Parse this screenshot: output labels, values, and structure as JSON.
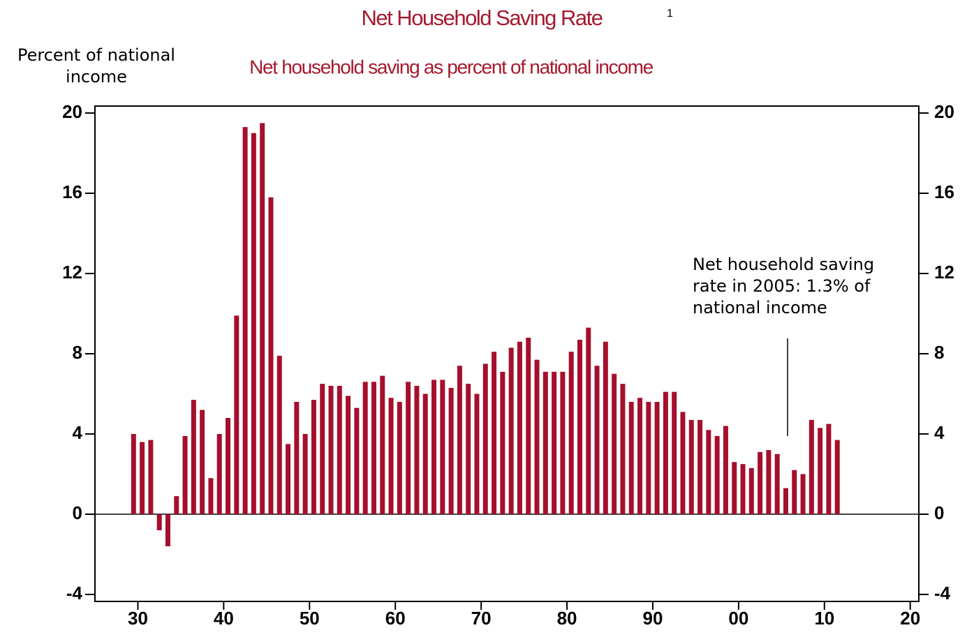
{
  "chart_data": {
    "type": "bar",
    "title": "Net Household Saving Rate",
    "title_note": "1",
    "subtitle": "Net household saving as percent of national income",
    "y_label": "Percent of national income",
    "annotation": "Net household saving rate in 2005:  1.3% of national income",
    "color": "#a50f2d",
    "x": [
      1929,
      1930,
      1931,
      1932,
      1933,
      1934,
      1935,
      1936,
      1937,
      1938,
      1939,
      1940,
      1941,
      1942,
      1943,
      1944,
      1945,
      1946,
      1947,
      1948,
      1949,
      1950,
      1951,
      1952,
      1953,
      1954,
      1955,
      1956,
      1957,
      1958,
      1959,
      1960,
      1961,
      1962,
      1963,
      1964,
      1965,
      1966,
      1967,
      1968,
      1969,
      1970,
      1971,
      1972,
      1973,
      1974,
      1975,
      1976,
      1977,
      1978,
      1979,
      1980,
      1981,
      1982,
      1983,
      1984,
      1985,
      1986,
      1987,
      1988,
      1989,
      1990,
      1991,
      1992,
      1993,
      1994,
      1995,
      1996,
      1997,
      1998,
      1999,
      2000,
      2001,
      2002,
      2003,
      2004,
      2005,
      2006,
      2007,
      2008,
      2009,
      2010,
      2011
    ],
    "values": [
      4.0,
      3.6,
      3.7,
      -0.8,
      -1.6,
      0.9,
      3.9,
      5.7,
      5.2,
      1.8,
      4.0,
      4.8,
      9.9,
      19.3,
      19.0,
      19.5,
      15.8,
      7.9,
      3.5,
      5.6,
      4.0,
      5.7,
      6.5,
      6.4,
      6.4,
      5.9,
      5.3,
      6.6,
      6.6,
      6.9,
      5.8,
      5.6,
      6.6,
      6.4,
      6.0,
      6.7,
      6.7,
      6.3,
      7.4,
      6.5,
      6.0,
      7.5,
      8.1,
      7.1,
      8.3,
      8.6,
      8.8,
      7.7,
      7.1,
      7.1,
      7.1,
      8.1,
      8.7,
      9.3,
      7.4,
      8.6,
      7.0,
      6.5,
      5.6,
      5.8,
      5.6,
      5.6,
      6.1,
      6.1,
      5.1,
      4.7,
      4.7,
      4.2,
      3.9,
      4.4,
      2.6,
      2.5,
      2.3,
      3.1,
      3.2,
      3.0,
      1.3,
      2.2,
      2.0,
      4.7,
      4.3,
      4.5,
      3.7
    ],
    "xlim": [
      1925,
      2021
    ],
    "xticks": [
      {
        "value": 1930,
        "label": "30"
      },
      {
        "value": 1940,
        "label": "40"
      },
      {
        "value": 1950,
        "label": "50"
      },
      {
        "value": 1960,
        "label": "60"
      },
      {
        "value": 1970,
        "label": "70"
      },
      {
        "value": 1980,
        "label": "80"
      },
      {
        "value": 1990,
        "label": "90"
      },
      {
        "value": 2000,
        "label": "00"
      },
      {
        "value": 2010,
        "label": "10"
      },
      {
        "value": 2020,
        "label": "20"
      }
    ],
    "ylim": [
      -4,
      20
    ],
    "yticks": [
      -4,
      0,
      4,
      8,
      12,
      16,
      20
    ]
  }
}
